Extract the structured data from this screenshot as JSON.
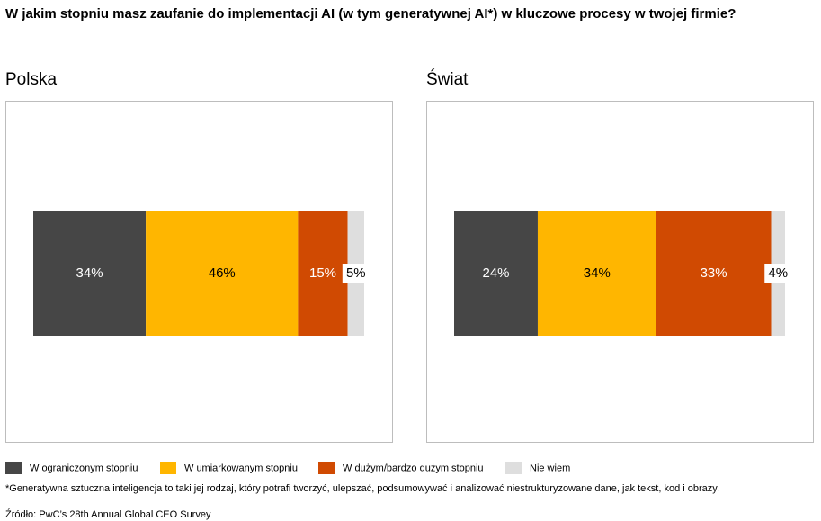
{
  "title": "W jakim stopniu masz zaufanie do implementacji AI (w tym generatywnej AI*) w kluczowe procesy w twojej firmie?",
  "legend": {
    "items": [
      {
        "name": "W ograniczonym stopniu",
        "color": "#464646"
      },
      {
        "name": "W umiarkowanym stopniu",
        "color": "#ffb600"
      },
      {
        "name": "W dużym/bardzo dużym stopniu",
        "color": "#d04a02"
      },
      {
        "name": "Nie wiem",
        "color": "#dedede"
      }
    ]
  },
  "footnote": "*Generatywna sztuczna inteligencja to taki jej rodzaj, który potrafi tworzyć, ulepszać, podsumowywać i analizować niestrukturyzowane dane, jak tekst, kod i obrazy.",
  "source": "Źródło: PwC’s 28th Annual Global CEO Survey",
  "chart_data": [
    {
      "type": "stacked_bar",
      "title": "Polska",
      "values": [
        34,
        46,
        15,
        5
      ],
      "value_labels": [
        "34%",
        "46%",
        "15%",
        "5%"
      ],
      "xlim": [
        0,
        100
      ]
    },
    {
      "type": "stacked_bar",
      "title": "Świat",
      "values": [
        24,
        34,
        33,
        4
      ],
      "value_labels": [
        "24%",
        "34%",
        "33%",
        "4%"
      ],
      "xlim": [
        0,
        95
      ]
    }
  ]
}
